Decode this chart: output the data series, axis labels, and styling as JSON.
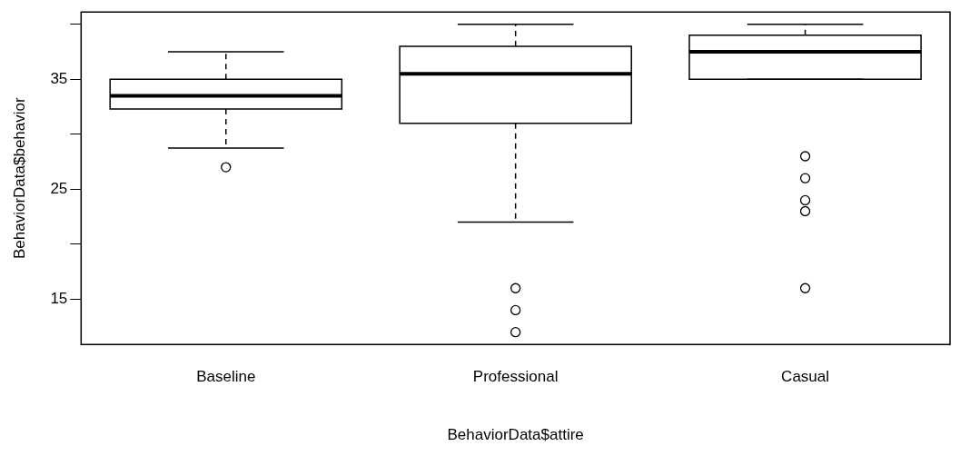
{
  "chart_data": {
    "type": "box",
    "xlabel": "BehaviorData$attire",
    "ylabel": "BehaviorData$behavior",
    "categories": [
      "Baseline",
      "Professional",
      "Casual"
    ],
    "boxes": [
      {
        "low": 28.75,
        "q1": 32.3,
        "median": 33.5,
        "q3": 35,
        "high": 37.5,
        "outliers": [
          27
        ]
      },
      {
        "low": 22,
        "q1": 31,
        "median": 35.5,
        "q3": 38,
        "high": 40,
        "outliers": [
          16,
          14,
          12
        ]
      },
      {
        "low": 35,
        "q1": 35,
        "median": 37.5,
        "q3": 39,
        "high": 40,
        "outliers": [
          28,
          26,
          24,
          23,
          16
        ]
      }
    ],
    "color": "#000000",
    "ylim": [
      10.88,
      41.12
    ],
    "yticks": [
      {
        "value": 15,
        "label": "15"
      },
      {
        "value": 20,
        "label": null
      },
      {
        "value": 25,
        "label": "25"
      },
      {
        "value": 30,
        "label": null
      },
      {
        "value": 35,
        "label": "35"
      },
      {
        "value": 40,
        "label": null
      }
    ],
    "marker": "circle",
    "grid": false,
    "legend": false
  }
}
